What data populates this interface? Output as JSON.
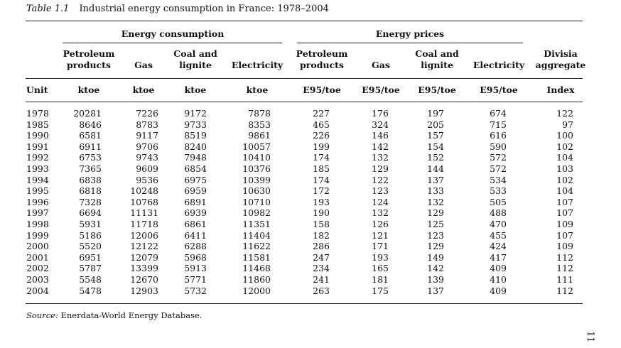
{
  "caption": {
    "number": "Table 1.1",
    "title": "Industrial energy consumption in France: 1978–2004"
  },
  "groups": {
    "consumption": "Energy consumption",
    "prices": "Energy prices"
  },
  "columns": [
    {
      "l1": "Petroleum",
      "l2": "products",
      "unit": "ktoe"
    },
    {
      "l1": "",
      "l2": "Gas",
      "unit": "ktoe"
    },
    {
      "l1": "Coal and",
      "l2": "lignite",
      "unit": "ktoe"
    },
    {
      "l1": "",
      "l2": "Electricity",
      "unit": "ktoe"
    },
    {
      "l1": "Petroleum",
      "l2": "products",
      "unit": "E95/toe"
    },
    {
      "l1": "",
      "l2": "Gas",
      "unit": "E95/toe"
    },
    {
      "l1": "Coal and",
      "l2": "lignite",
      "unit": "E95/toe"
    },
    {
      "l1": "",
      "l2": "Electricity",
      "unit": "E95/toe"
    },
    {
      "l1": "Divisia",
      "l2": "aggregate",
      "unit": "Index"
    }
  ],
  "unit_label": "Unit",
  "rows": [
    [
      "1978",
      "20281",
      "7226",
      "9172",
      "7878",
      "227",
      "176",
      "197",
      "674",
      "122"
    ],
    [
      "1985",
      "8646",
      "8783",
      "9733",
      "8353",
      "465",
      "324",
      "205",
      "715",
      "97"
    ],
    [
      "1990",
      "6581",
      "9117",
      "8519",
      "9861",
      "226",
      "146",
      "157",
      "616",
      "100"
    ],
    [
      "1991",
      "6911",
      "9706",
      "8240",
      "10057",
      "199",
      "142",
      "154",
      "590",
      "102"
    ],
    [
      "1992",
      "6753",
      "9743",
      "7948",
      "10410",
      "174",
      "132",
      "152",
      "572",
      "104"
    ],
    [
      "1993",
      "7365",
      "9609",
      "6854",
      "10376",
      "185",
      "129",
      "144",
      "572",
      "103"
    ],
    [
      "1994",
      "6838",
      "9536",
      "6975",
      "10399",
      "174",
      "122",
      "137",
      "534",
      "102"
    ],
    [
      "1995",
      "6818",
      "10248",
      "6959",
      "10630",
      "172",
      "123",
      "133",
      "533",
      "104"
    ],
    [
      "1996",
      "7328",
      "10768",
      "6891",
      "10710",
      "193",
      "124",
      "132",
      "505",
      "107"
    ],
    [
      "1997",
      "6694",
      "11131",
      "6939",
      "10982",
      "190",
      "132",
      "129",
      "488",
      "107"
    ],
    [
      "1998",
      "5931",
      "11718",
      "6861",
      "11351",
      "158",
      "126",
      "125",
      "470",
      "109"
    ],
    [
      "1999",
      "5186",
      "12006",
      "6411",
      "11404",
      "182",
      "121",
      "123",
      "455",
      "107"
    ],
    [
      "2000",
      "5520",
      "12122",
      "6288",
      "11622",
      "286",
      "171",
      "129",
      "424",
      "109"
    ],
    [
      "2001",
      "6951",
      "12079",
      "5968",
      "11581",
      "247",
      "193",
      "149",
      "417",
      "112"
    ],
    [
      "2002",
      "5787",
      "13399",
      "5913",
      "11468",
      "234",
      "165",
      "142",
      "409",
      "112"
    ],
    [
      "2003",
      "5548",
      "12670",
      "5771",
      "11860",
      "241",
      "181",
      "139",
      "410",
      "111"
    ],
    [
      "2004",
      "5478",
      "12903",
      "5732",
      "12000",
      "263",
      "175",
      "137",
      "409",
      "112"
    ]
  ],
  "source": {
    "label": "Source:",
    "text": "Enerdata-World Energy Database."
  },
  "page_number": "11"
}
